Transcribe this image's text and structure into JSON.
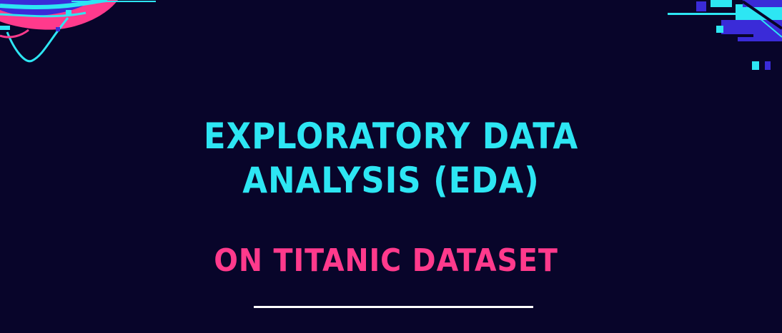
{
  "banner": {
    "title_line1": "EXPLORATORY DATA",
    "title_line2": "ANALYSIS (EDA)",
    "subtitle": "ON TITANIC DATASET"
  },
  "colors": {
    "background": "#08052a",
    "title": "#2de6f3",
    "subtitle": "#ff3a8c",
    "divider": "#ffffff",
    "accent_blue": "#3a2bd8",
    "accent_cyan": "#2de6f3",
    "accent_pink": "#ff3a8c"
  },
  "decorations": {
    "top_left": "glitch-wave-graphic",
    "top_right": "glitch-pixel-graphic"
  }
}
